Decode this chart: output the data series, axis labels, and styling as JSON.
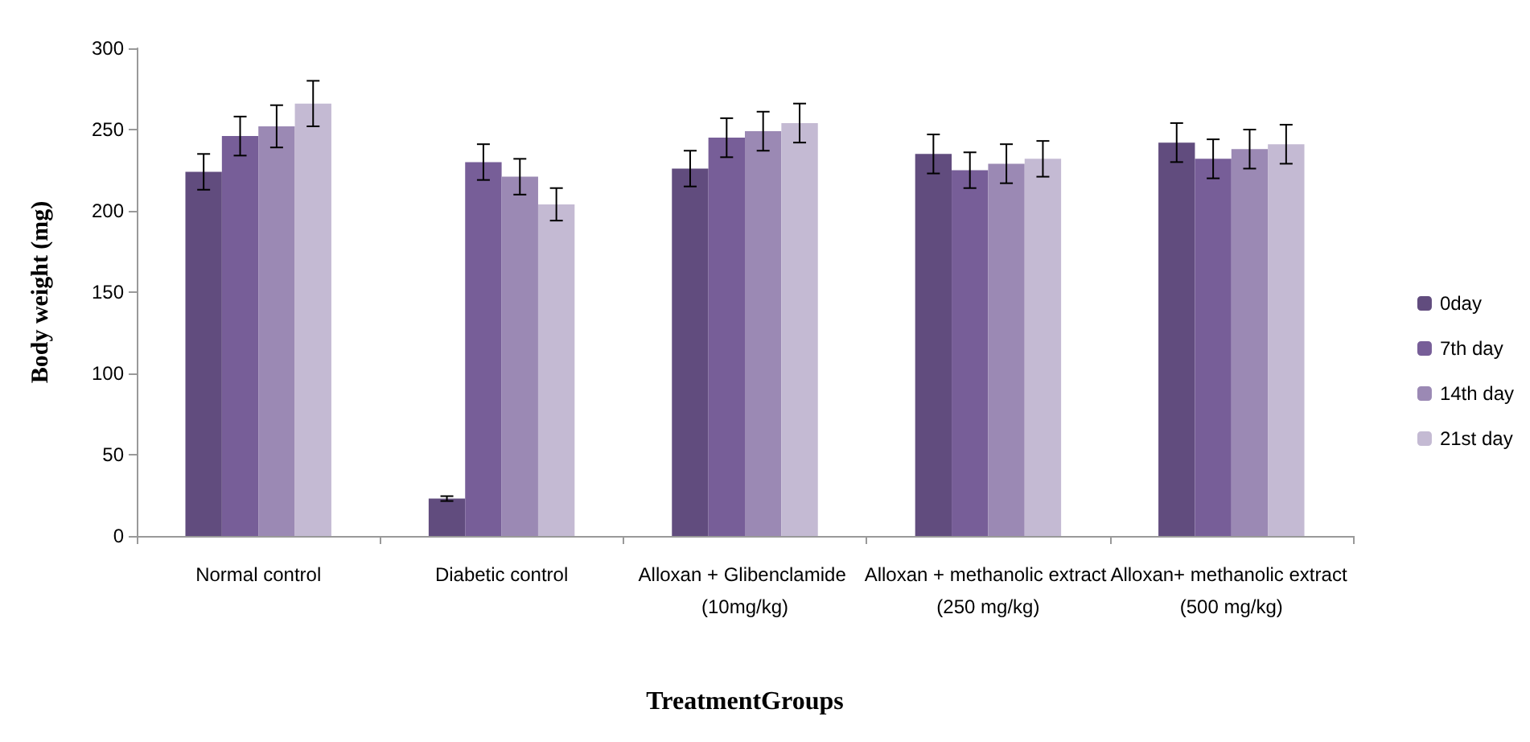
{
  "chart_data": {
    "type": "bar",
    "xlabel": "TreatmentGroups",
    "ylabel": "Body weight (mg)",
    "categories": [
      "Normal control",
      "Diabetic control",
      "Alloxan + Glibenclamide (10mg/kg)",
      "Alloxan + methanolic extract (250 mg/kg)",
      "Alloxan+ methanolic extract (500 mg/kg)"
    ],
    "series": [
      {
        "name": "0day",
        "color": "#614c7e",
        "values": [
          224,
          23,
          226,
          235,
          242
        ],
        "errors": [
          11,
          1.5,
          11,
          12,
          12
        ]
      },
      {
        "name": "7th day",
        "color": "#775e98",
        "values": [
          246,
          230,
          245,
          225,
          232
        ],
        "errors": [
          12,
          11,
          12,
          11,
          12
        ]
      },
      {
        "name": "14th day",
        "color": "#9b89b4",
        "values": [
          252,
          221,
          249,
          229,
          238
        ],
        "errors": [
          13,
          11,
          12,
          12,
          12
        ]
      },
      {
        "name": "21st day",
        "color": "#c4bad3",
        "values": [
          266,
          204,
          254,
          232,
          241
        ],
        "errors": [
          14,
          10,
          12,
          11,
          12
        ]
      }
    ],
    "ylim": [
      0,
      300
    ],
    "yticks": [
      0,
      50,
      100,
      150,
      200,
      250,
      300
    ],
    "grid": false,
    "legend": "right"
  }
}
